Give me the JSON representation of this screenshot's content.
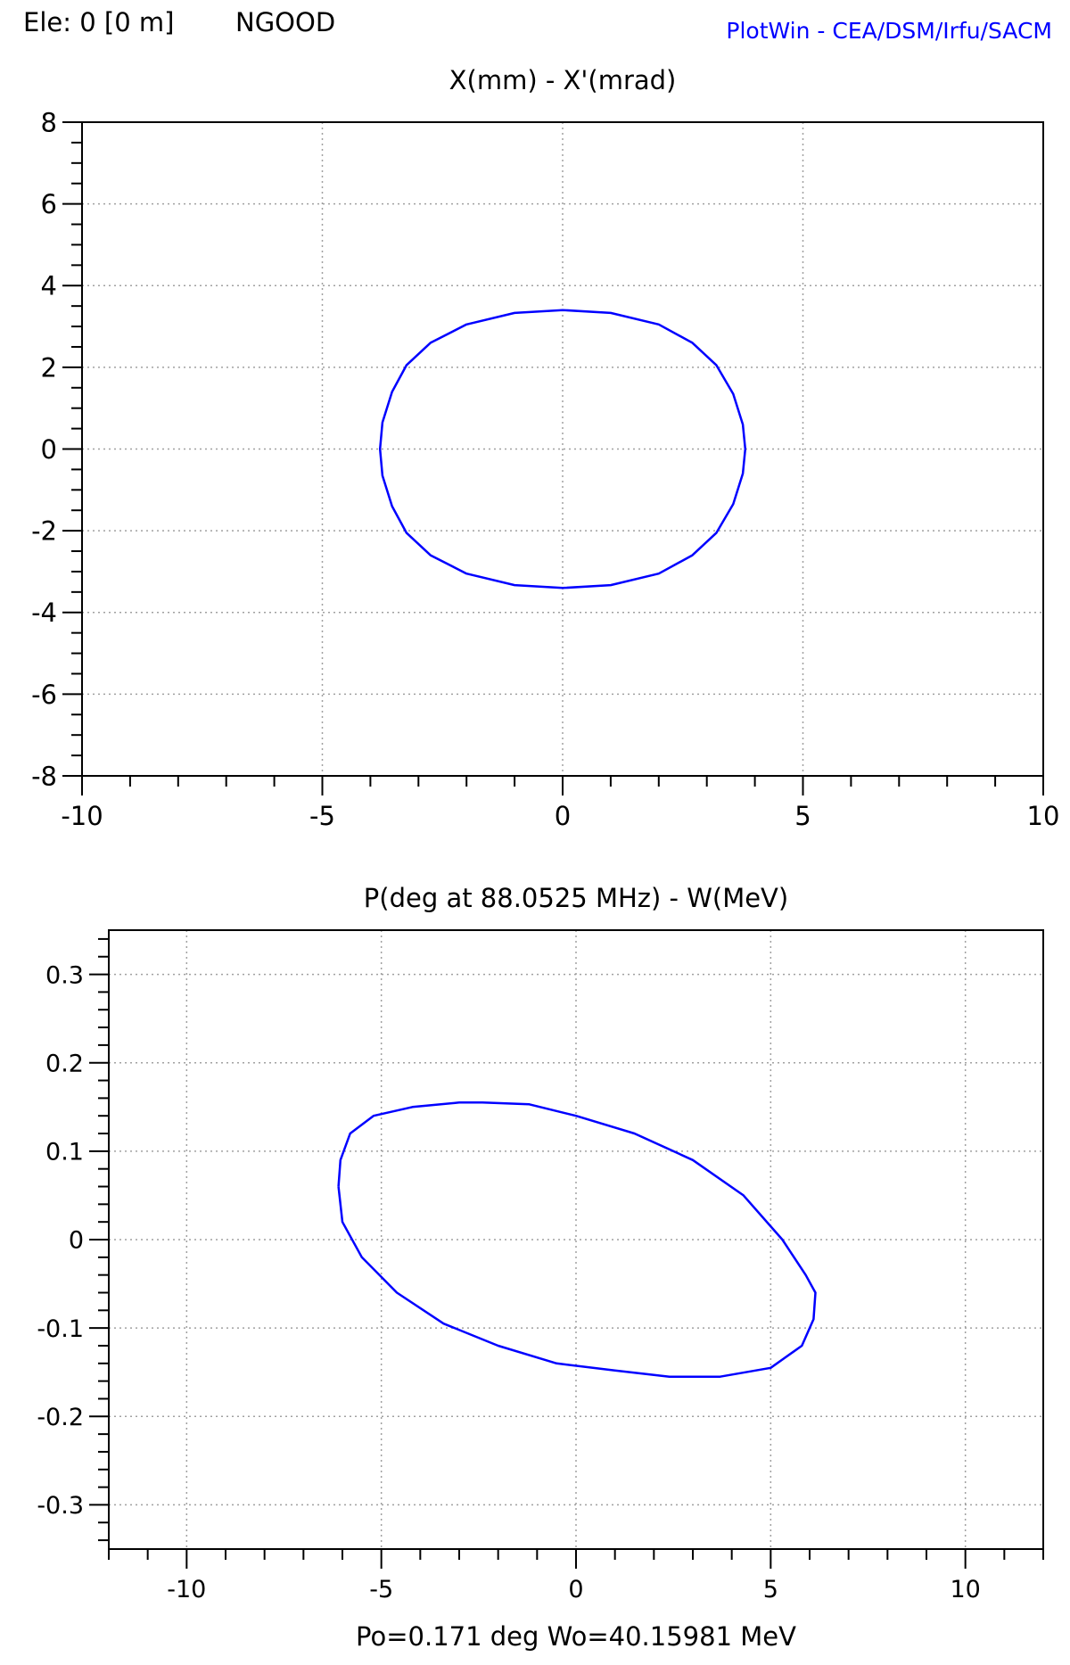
{
  "header": {
    "element_label": "Ele: 0 [0 m]",
    "status_label": "NGOOD",
    "app_credit": "PlotWin - CEA/DSM/Irfu/SACM"
  },
  "colors": {
    "curve": "#0000ff",
    "grid": "#a0a0a0",
    "axis": "#000000",
    "credit": "#0000ff"
  },
  "chart_data": [
    {
      "type": "line",
      "title": "X(mm) - X'(mrad)",
      "xlabel": "",
      "ylabel": "",
      "xlim": [
        -10,
        10
      ],
      "ylim": [
        -8,
        8
      ],
      "x_ticks": [
        -10,
        -5,
        0,
        5,
        10
      ],
      "x_tick_labels": [
        "-10",
        "-5",
        "0",
        "5",
        "10"
      ],
      "y_ticks": [
        8,
        6,
        4,
        2,
        0,
        -2,
        -4,
        -6,
        -8
      ],
      "y_tick_labels": [
        "8",
        "6",
        "4",
        "2",
        "0",
        "-2",
        "-4",
        "-6",
        "-8"
      ],
      "grid": true,
      "series": [
        {
          "x": [
            3.8,
            3.75,
            3.55,
            3.2,
            2.7,
            2.0,
            1.0,
            0.0,
            -1.0,
            -2.0,
            -2.75,
            -3.25,
            -3.55,
            -3.75,
            -3.8,
            -3.75,
            -3.55,
            -3.25,
            -2.75,
            -2.0,
            -1.0,
            0.0,
            1.0,
            2.0,
            2.7,
            3.2,
            3.55,
            3.75,
            3.8
          ],
          "y": [
            0.0,
            0.6,
            1.35,
            2.05,
            2.6,
            3.05,
            3.33,
            3.4,
            3.33,
            3.05,
            2.6,
            2.05,
            1.4,
            0.65,
            0.0,
            -0.65,
            -1.4,
            -2.05,
            -2.6,
            -3.05,
            -3.33,
            -3.4,
            -3.33,
            -3.05,
            -2.6,
            -2.05,
            -1.35,
            -0.6,
            0.0
          ]
        }
      ]
    },
    {
      "type": "line",
      "title": "P(deg at 88.0525 MHz) - W(MeV)",
      "xlabel": "Po=0.171 deg  Wo=40.15981 MeV",
      "ylabel": "",
      "xlim": [
        -12,
        12
      ],
      "ylim": [
        -0.35,
        0.35
      ],
      "x_ticks": [
        -10,
        -5,
        0,
        5,
        10
      ],
      "x_tick_labels": [
        "-10",
        "-5",
        "0",
        "5",
        "10"
      ],
      "y_ticks": [
        0.3,
        0.2,
        0.1,
        0,
        -0.1,
        -0.2,
        -0.3
      ],
      "y_tick_labels": [
        "0.3",
        "0.2",
        "0.1",
        "0",
        "-0.1",
        "-0.2",
        "-0.3"
      ],
      "grid": true,
      "series": [
        {
          "x": [
            -6.1,
            -6.05,
            -5.8,
            -5.2,
            -4.2,
            -3.0,
            -2.4,
            -1.2,
            0.0,
            1.5,
            3.0,
            4.3,
            5.3,
            5.9,
            6.15,
            6.1,
            5.8,
            5.0,
            3.7,
            2.4,
            1.0,
            -0.5,
            -2.0,
            -3.4,
            -4.6,
            -5.5,
            -6.0,
            -6.1
          ],
          "y": [
            0.06,
            0.09,
            0.12,
            0.14,
            0.15,
            0.155,
            0.155,
            0.153,
            0.14,
            0.12,
            0.09,
            0.05,
            0.0,
            -0.04,
            -0.06,
            -0.09,
            -0.12,
            -0.145,
            -0.155,
            -0.155,
            -0.148,
            -0.14,
            -0.12,
            -0.095,
            -0.06,
            -0.02,
            0.02,
            0.06
          ]
        }
      ]
    }
  ]
}
